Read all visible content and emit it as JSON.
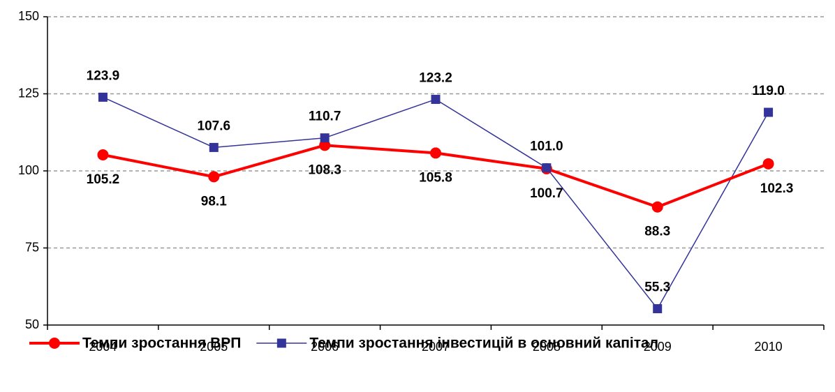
{
  "chart_data": {
    "type": "line",
    "categories": [
      "2004",
      "2005",
      "2006",
      "2007",
      "2008",
      "2009",
      "2010"
    ],
    "series": [
      {
        "name": "Темпи зростання ВРП",
        "color": "#ff0000",
        "marker": "circle",
        "values": [
          105.2,
          98.1,
          108.3,
          105.8,
          100.7,
          88.3,
          102.3
        ],
        "value_labels": [
          "105.2",
          "98.1",
          "108.3",
          "105.8",
          "100.7",
          "88.3",
          "102.3"
        ]
      },
      {
        "name": "Темпи зростання інвестицій в основний капітал",
        "color": "#333399",
        "marker": "square",
        "values": [
          123.9,
          107.6,
          110.7,
          123.2,
          101.0,
          55.3,
          119.0
        ],
        "value_labels": [
          "123.9",
          "107.6",
          "110.7",
          "123.2",
          "101.0",
          "55.3",
          "119.0"
        ]
      }
    ],
    "ylim": [
      50,
      150
    ],
    "yticks": [
      50,
      75,
      100,
      125,
      150
    ],
    "grid": true,
    "legend": "bottom"
  }
}
